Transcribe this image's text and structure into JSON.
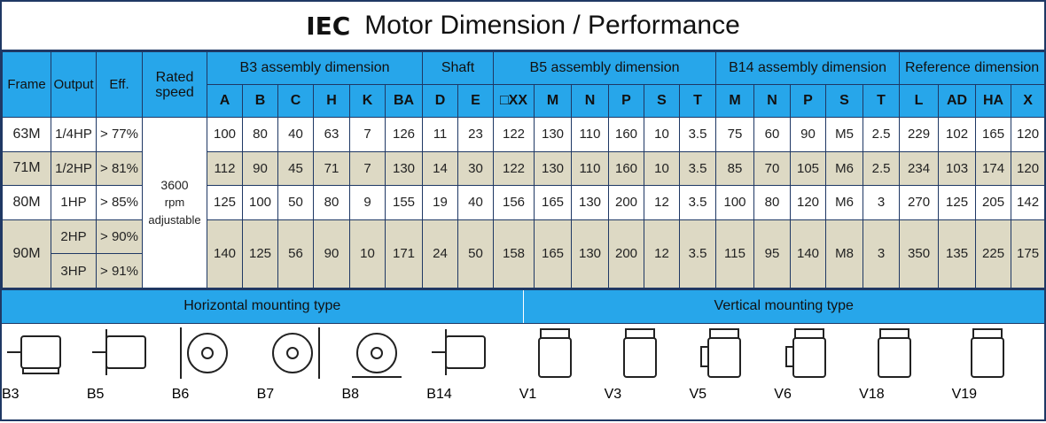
{
  "title_prefix": "IEC",
  "title": "Motor Dimension / Performance",
  "table": {
    "fixed_headers": [
      "Frame",
      "Output",
      "Eff.",
      "Rated speed"
    ],
    "groups": [
      {
        "label": "B3 assembly dimension",
        "columns": [
          "A",
          "B",
          "C",
          "H",
          "K",
          "BA"
        ]
      },
      {
        "label": "Shaft",
        "columns": [
          "D",
          "E"
        ]
      },
      {
        "label": "B5 assembly dimension",
        "columns": [
          "□XX",
          "M",
          "N",
          "P",
          "S",
          "T"
        ]
      },
      {
        "label": "B14 assembly dimension",
        "columns": [
          "M",
          "N",
          "P",
          "S",
          "T"
        ]
      },
      {
        "label": "Reference dimension",
        "columns": [
          "L",
          "AD",
          "HA",
          "X"
        ]
      }
    ],
    "rated_speed": [
      "3600",
      "rpm",
      "adjustable"
    ],
    "rows": [
      {
        "frame": "63M",
        "outputs": [
          {
            "output": "1/4HP",
            "eff": "> 77%"
          }
        ],
        "values": [
          "100",
          "80",
          "40",
          "63",
          "7",
          "126",
          "11",
          "23",
          "122",
          "130",
          "110",
          "160",
          "10",
          "3.5",
          "75",
          "60",
          "90",
          "M5",
          "2.5",
          "229",
          "102",
          "165",
          "120"
        ]
      },
      {
        "frame": "71M",
        "outputs": [
          {
            "output": "1/2HP",
            "eff": "> 81%"
          }
        ],
        "values": [
          "112",
          "90",
          "45",
          "71",
          "7",
          "130",
          "14",
          "30",
          "122",
          "130",
          "110",
          "160",
          "10",
          "3.5",
          "85",
          "70",
          "105",
          "M6",
          "2.5",
          "234",
          "103",
          "174",
          "120"
        ]
      },
      {
        "frame": "80M",
        "outputs": [
          {
            "output": "1HP",
            "eff": "> 85%"
          }
        ],
        "values": [
          "125",
          "100",
          "50",
          "80",
          "9",
          "155",
          "19",
          "40",
          "156",
          "165",
          "130",
          "200",
          "12",
          "3.5",
          "100",
          "80",
          "120",
          "M6",
          "3",
          "270",
          "125",
          "205",
          "142"
        ]
      },
      {
        "frame": "90M",
        "outputs": [
          {
            "output": "2HP",
            "eff": "> 90%"
          },
          {
            "output": "3HP",
            "eff": "> 91%"
          }
        ],
        "values": [
          "140",
          "125",
          "56",
          "90",
          "10",
          "171",
          "24",
          "50",
          "158",
          "165",
          "130",
          "200",
          "12",
          "3.5",
          "115",
          "95",
          "140",
          "M8",
          "3",
          "350",
          "135",
          "225",
          "175"
        ]
      }
    ]
  },
  "mounting": [
    {
      "label": "Horizontal mounting type",
      "types": [
        "B3",
        "B5",
        "B6",
        "B7",
        "B8",
        "B14"
      ]
    },
    {
      "label": "Vertical mounting type",
      "types": [
        "V1",
        "V3",
        "V5",
        "V6",
        "V18",
        "V19"
      ]
    }
  ]
}
